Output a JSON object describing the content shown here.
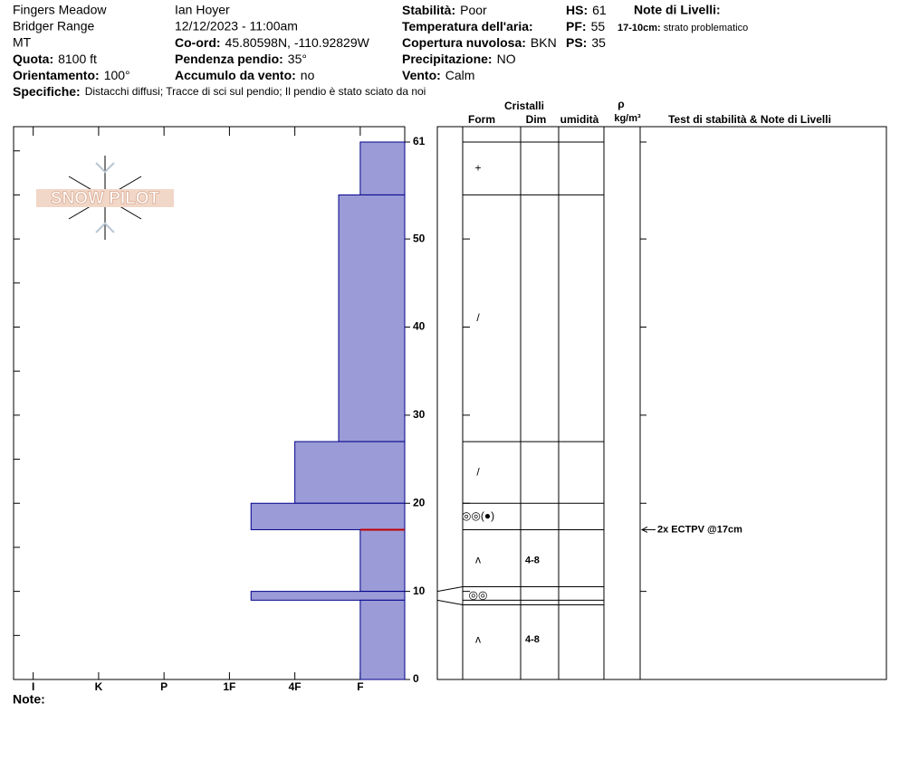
{
  "header": {
    "lines_left": [
      "Fingers Meadow",
      "Bridger Range",
      "MT"
    ],
    "lines_mid": [
      "Ian Hoyer",
      "12/12/2023 - 11:00am"
    ],
    "fields": [
      {
        "label": "Quota:",
        "value": "8100 ft"
      },
      {
        "label": "Orientamento:",
        "value": "100°"
      },
      {
        "label": "Co-ord:",
        "value": "45.80598N, -110.92829W"
      },
      {
        "label": "Pendenza pendio:",
        "value": "35°"
      },
      {
        "label": "Accumulo da vento:",
        "value": "no"
      },
      {
        "label": "Stabilità:",
        "value": "Poor"
      },
      {
        "label": "Temperatura dell'aria:"
      },
      {
        "label": "Copertura nuvolosa:",
        "value": "BKN"
      },
      {
        "label": "Precipitazione:",
        "value": "NO"
      },
      {
        "label": "Vento:",
        "value": "Calm"
      },
      {
        "label": "HS:",
        "value": "61"
      },
      {
        "label": "PF:",
        "value": "55"
      },
      {
        "label": "PS:",
        "value": "35"
      }
    ],
    "specifiche_label": "Specifiche:",
    "specifiche": "Distacchi diffusi;  Tracce di sci sul pendio;  Il pendio è stato sciato da noi",
    "level_notes_title": "Note di Livelli:",
    "level_notes": [
      {
        "range": "17-10cm:",
        "text": "strato problematico"
      }
    ]
  },
  "logo": "SNOW PILOT",
  "chart_data": {
    "type": "snow-profile",
    "ylim": [
      0,
      61
    ],
    "yticks": [
      0,
      10,
      20,
      30,
      40,
      50,
      61
    ],
    "xlim": [
      -0.3,
      5.68
    ],
    "xticks": [
      {
        "value": 0,
        "label": "I"
      },
      {
        "value": 1,
        "label": "K"
      },
      {
        "value": 2,
        "label": "P"
      },
      {
        "value": 3,
        "label": "1F"
      },
      {
        "value": 4,
        "label": "4F"
      },
      {
        "value": 5,
        "label": "F"
      }
    ],
    "color": "#9b9bd7",
    "layers": [
      {
        "top": 61,
        "bottom": 55,
        "hardness": 5,
        "form": "+"
      },
      {
        "top": 55,
        "bottom": 27,
        "hardness": 4.67,
        "form": "/"
      },
      {
        "top": 27,
        "bottom": 20,
        "hardness": 4,
        "form": "/"
      },
      {
        "top": 20,
        "bottom": 17,
        "hardness": 3.33,
        "form": "◎◎(●)"
      },
      {
        "top": 17,
        "bottom": 10,
        "hardness": 5,
        "form": "ʌ",
        "size": "4-8"
      },
      {
        "top": 10,
        "bottom": 9,
        "hardness": 3.33,
        "form": "◎◎"
      },
      {
        "top": 9,
        "bottom": 0,
        "hardness": 5,
        "form": "ʌ",
        "size": "4-8"
      }
    ],
    "problem_depth": 17,
    "problem_color": "#c00000",
    "columns": {
      "crystals": "Cristalli",
      "form": "Form",
      "size": "Dim",
      "moisture": "umidità",
      "rho": "ρ",
      "density_unit": "kg/m³",
      "tests": "Test di stabilità & Note di Livelli"
    },
    "tests": [
      {
        "depth": 17,
        "label": "2x ECTPV @17cm"
      }
    ],
    "note_label": "Note:"
  }
}
